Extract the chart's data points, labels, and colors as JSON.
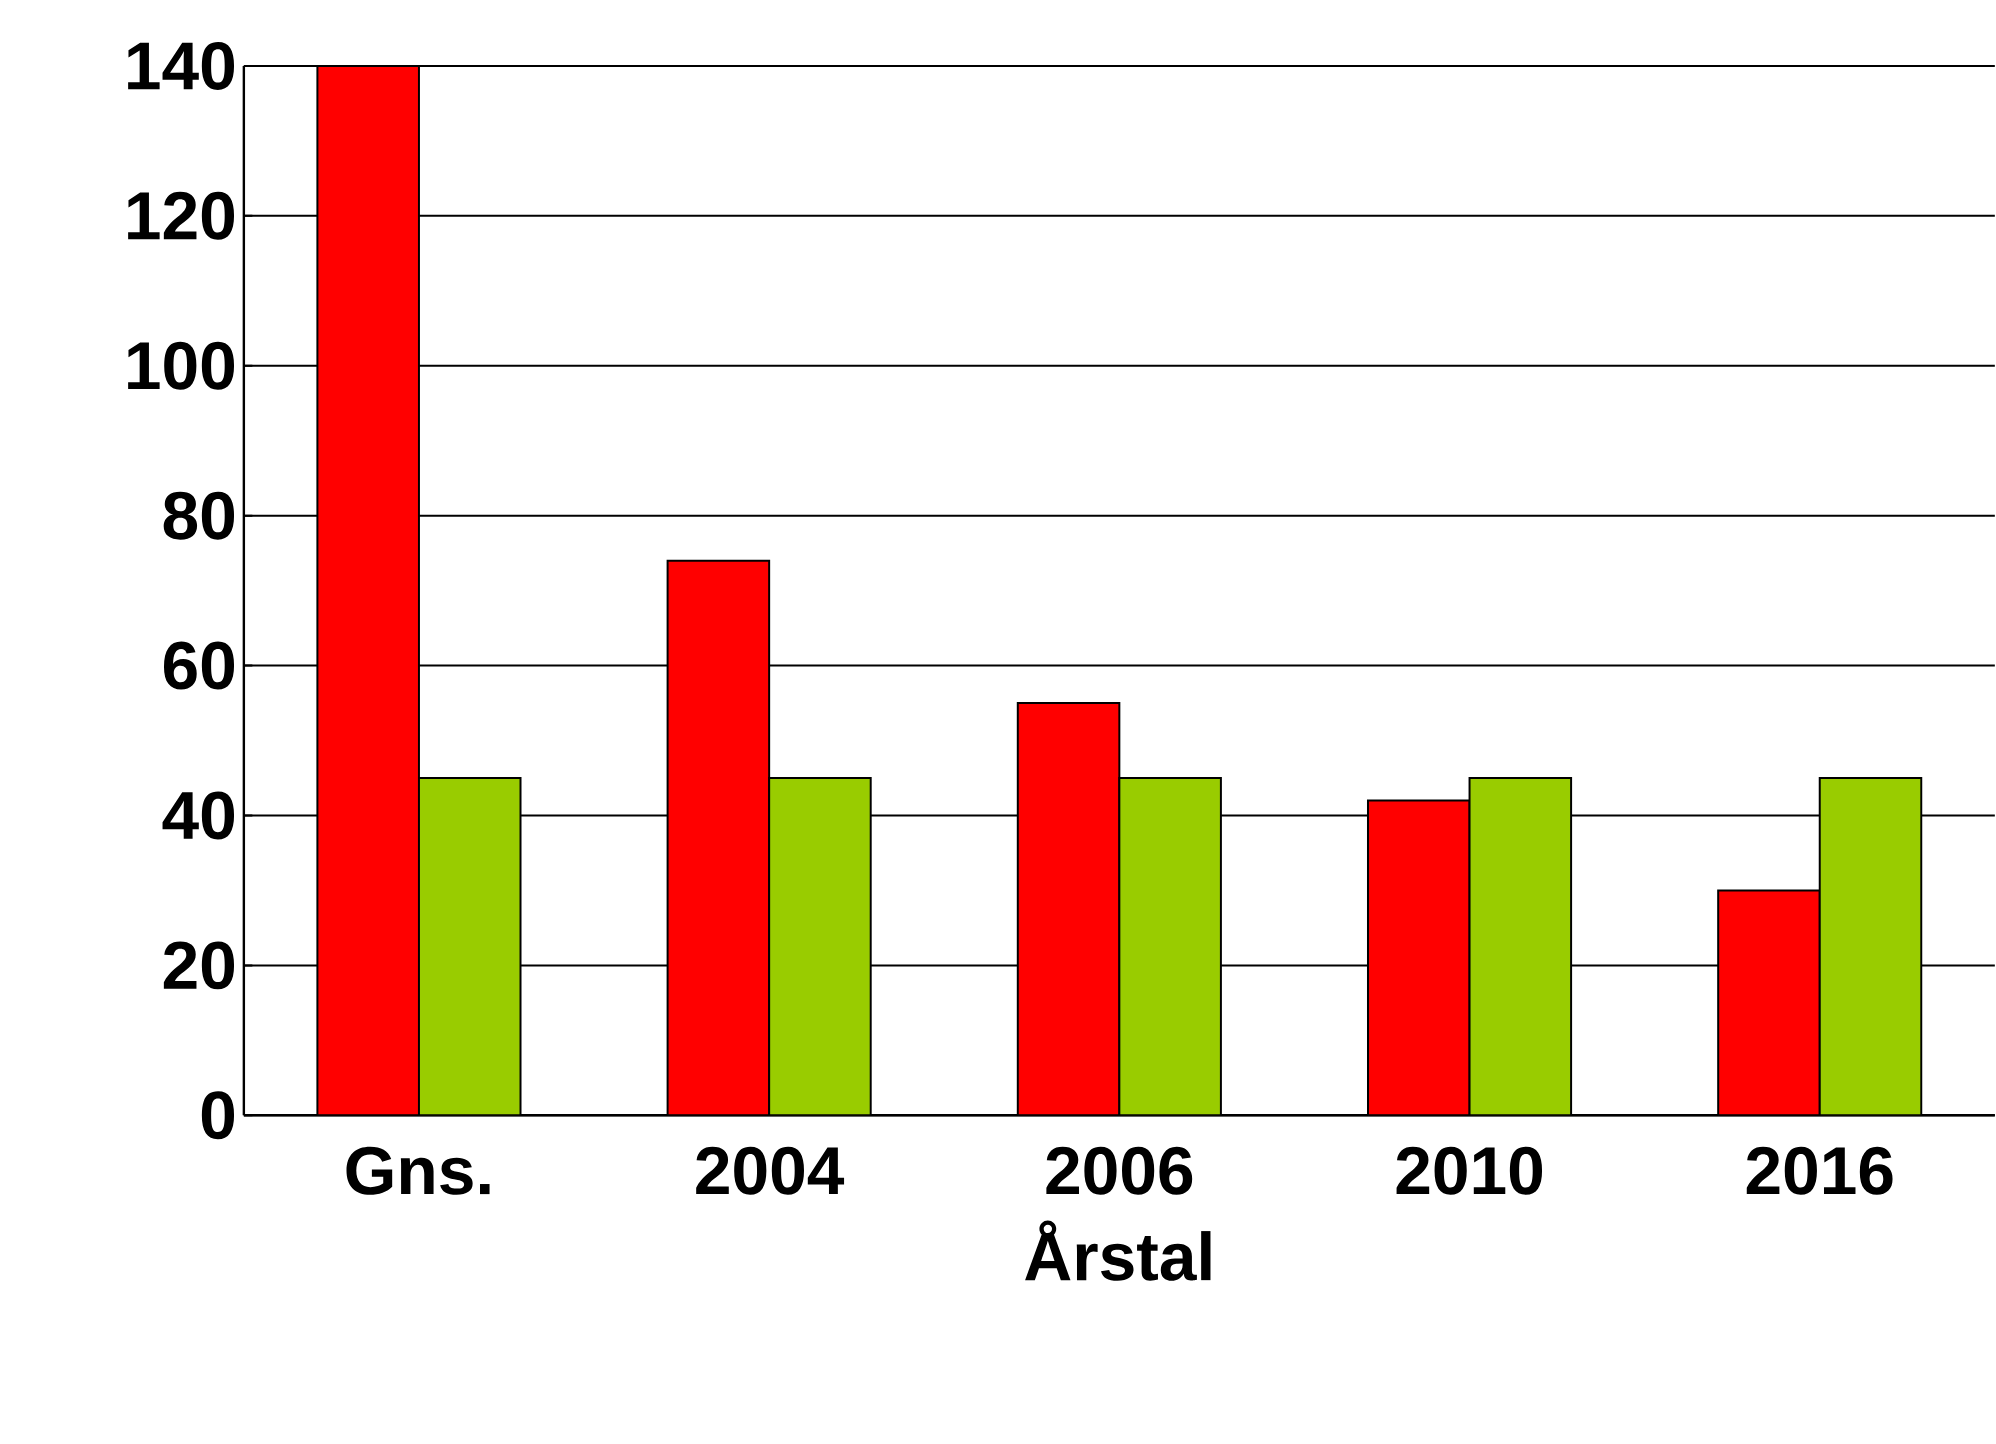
{
  "chart_data": {
    "type": "bar",
    "xlabel": "Årstal",
    "categories": [
      "Gns.",
      "2004",
      "2006",
      "2010",
      "2016"
    ],
    "series": [
      {
        "color": "#ff0000",
        "values": [
          140,
          74,
          55,
          42,
          30
        ]
      },
      {
        "color": "#99cc00",
        "values": [
          45,
          45,
          45,
          45,
          45
        ]
      }
    ],
    "ylim": [
      0,
      140
    ],
    "yticks": [
      0,
      20,
      40,
      60,
      80,
      100,
      120,
      140
    ],
    "grid": "y"
  }
}
